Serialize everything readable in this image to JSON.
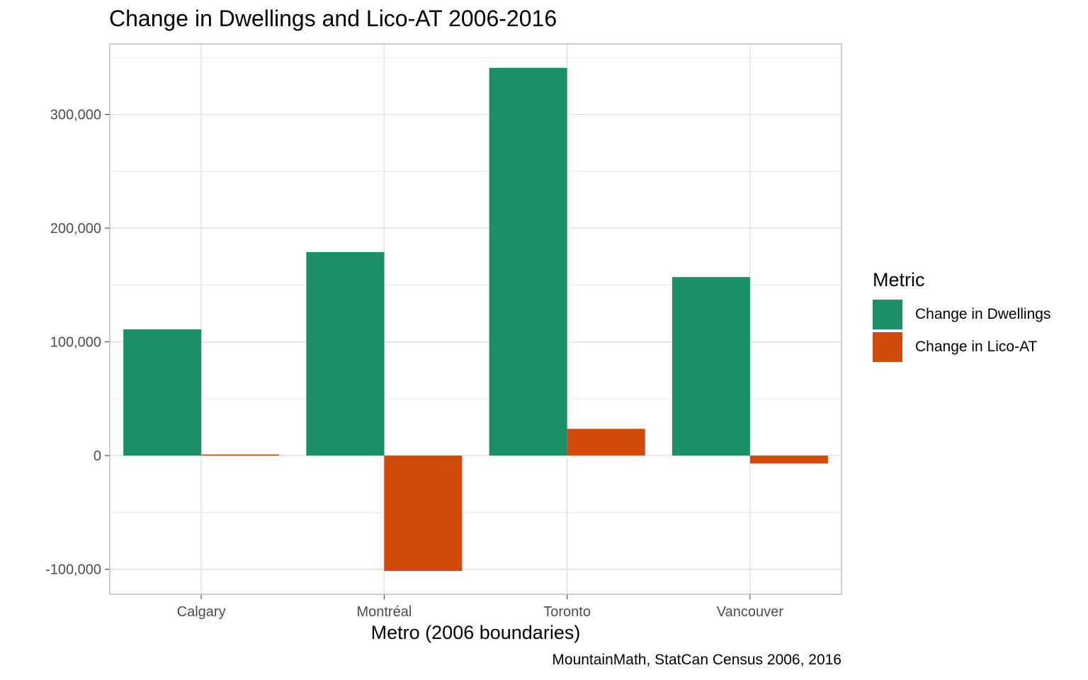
{
  "chart_data": {
    "type": "bar",
    "title": "Change in Dwellings and Lico-AT 2006-2016",
    "xlabel": "Metro (2006 boundaries)",
    "ylabel": "",
    "caption": "MountainMath, StatCan Census 2006, 2016",
    "categories": [
      "Calgary",
      "Montréal",
      "Toronto",
      "Vancouver"
    ],
    "ylim": [
      -122000,
      362000
    ],
    "yticks": [
      -100000,
      0,
      100000,
      200000,
      300000
    ],
    "ytick_labels": [
      "-100,000",
      "0",
      "100,000",
      "200,000",
      "300,000"
    ],
    "grid": true,
    "legend": {
      "title": "Metric",
      "placement": "right"
    },
    "series": [
      {
        "name": "Change in Dwellings",
        "color": "#1b9066",
        "values": [
          111000,
          179000,
          341000,
          157000
        ]
      },
      {
        "name": "Change in Lico-AT",
        "color": "#d04b0a",
        "values": [
          1000,
          -101500,
          23500,
          -7000
        ]
      }
    ]
  }
}
